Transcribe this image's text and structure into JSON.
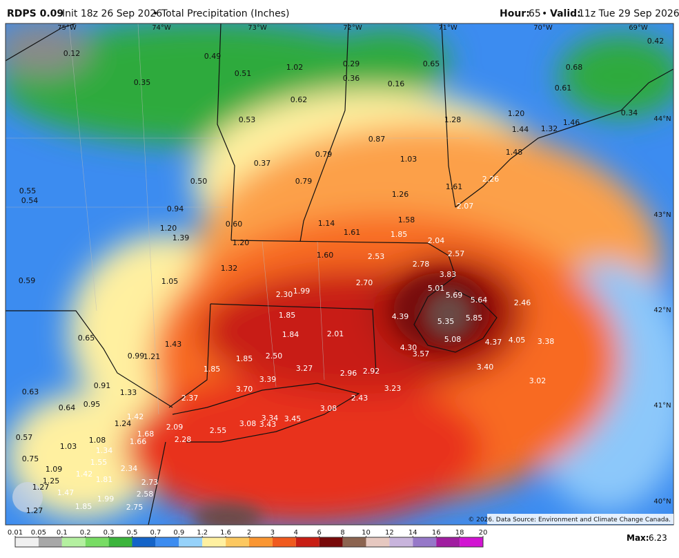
{
  "header": {
    "model": "RDPS 0.09",
    "init": "Init 18z 26 Sep 2026",
    "separator": "•",
    "product": "Total Precipitation (Inches)",
    "hour_label": "Hour:",
    "hour": "65",
    "valid_label": "Valid:",
    "valid": "11z Tue 29 Sep 2026"
  },
  "map": {
    "lon_labels": [
      "75°W",
      "74°W",
      "73°W",
      "72°W",
      "71°W",
      "70°W",
      "69°W"
    ],
    "lat_labels": [
      "44°N",
      "43°N",
      "42°N",
      "41°N",
      "40°N"
    ],
    "point_labels": [
      "0.12",
      "0.49",
      "0.51",
      "1.02",
      "0.29",
      "0.36",
      "0.16",
      "0.65",
      "0.42",
      "0.68",
      "0.61",
      "0.35",
      "0.62",
      "0.53",
      "1.20",
      "0.34",
      "1.28",
      "1.44",
      "1.32",
      "1.46",
      "0.87",
      "1.03",
      "1.48",
      "0.79",
      "0.37",
      "0.55",
      "0.54",
      "0.50",
      "0.79",
      "2.26",
      "1.26",
      "1.61",
      "2.07",
      "0.94",
      "1.58",
      "1.14",
      "1.61",
      "0.60",
      "1.20",
      "1.39",
      "1.85",
      "2.04",
      "1.20",
      "1.60",
      "2.53",
      "2.57",
      "2.78",
      "1.32",
      "3.83",
      "0.59",
      "1.05",
      "2.70",
      "5.01",
      "5.69",
      "5.64",
      "2.46",
      "2.30",
      "1.99",
      "4.39",
      "5.35",
      "5.85",
      "1.85",
      "0.65",
      "1.84",
      "2.01",
      "5.08",
      "4.37",
      "4.05",
      "3.38",
      "1.43",
      "4.30",
      "3.57",
      "0.99",
      "1.21",
      "2.50",
      "1.85",
      "3.27",
      "1.85",
      "2.96",
      "2.92",
      "3.40",
      "0.91",
      "3.39",
      "3.02",
      "1.33",
      "3.70",
      "3.23",
      "0.63",
      "2.37",
      "2.43",
      "0.95",
      "0.64",
      "1.42",
      "3.08",
      "3.34",
      "3.45",
      "3.43",
      "1.24",
      "2.09",
      "3.08",
      "2.55",
      "1.68",
      "2.28",
      "1.66",
      "1.08",
      "0.57",
      "1.03",
      "1.34",
      "1.55",
      "0.75",
      "1.09",
      "2.34",
      "1.42",
      "1.81",
      "1.25",
      "2.73",
      "1.27",
      "1.47",
      "2.58",
      "1.99",
      "1.85",
      "2.75",
      "1.27"
    ],
    "credit": "© 2026. Data Source: Environment and Climate Change Canada."
  },
  "legend": {
    "ticks": [
      0.01,
      0.05,
      0.1,
      0.2,
      0.3,
      0.5,
      0.7,
      0.9,
      1.2,
      1.6,
      2,
      3,
      4,
      6,
      8,
      10,
      12,
      14,
      16,
      18,
      20
    ],
    "max_label": "Max:",
    "max": "6.23"
  }
}
